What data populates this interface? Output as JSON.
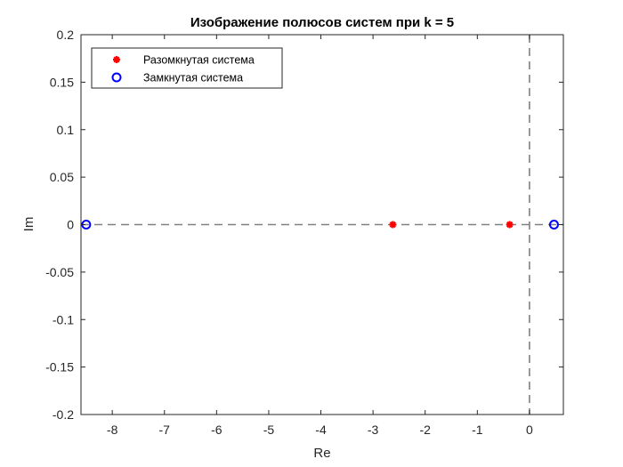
{
  "chart_data": {
    "type": "scatter",
    "title": "Изображение полюсов систем при k = 5",
    "xlabel": "Re",
    "ylabel": "Im",
    "xlim": [
      -8.6,
      0.65
    ],
    "ylim": [
      -0.2,
      0.2
    ],
    "xticks": [
      -8,
      -7,
      -6,
      -5,
      -4,
      -3,
      -2,
      -1,
      0
    ],
    "xtick_labels": [
      "-8",
      "-7",
      "-6",
      "-5",
      "-4",
      "-3",
      "-2",
      "-1",
      "0"
    ],
    "yticks": [
      -0.2,
      -0.15,
      -0.1,
      -0.05,
      0,
      0.05,
      0.1,
      0.15,
      0.2
    ],
    "ytick_labels": [
      "-0.2",
      "-0.15",
      "-0.1",
      "-0.05",
      "0",
      "0.05",
      "0.1",
      "0.15",
      "0.2"
    ],
    "grid": false,
    "legend_position": "top-left",
    "reference_lines": [
      {
        "orientation": "horizontal",
        "value": 0,
        "style": "dashed",
        "color": "#808080"
      },
      {
        "orientation": "vertical",
        "value": 0,
        "style": "dashed",
        "color": "#808080"
      }
    ],
    "series": [
      {
        "name": "Разомкнутая система",
        "marker": "asterisk",
        "color": "#ff0000",
        "points": [
          {
            "x": -2.62,
            "y": 0
          },
          {
            "x": -0.38,
            "y": 0
          }
        ]
      },
      {
        "name": "Замкнутая система",
        "marker": "circle",
        "color": "#0000ff",
        "points": [
          {
            "x": -8.5,
            "y": 0
          },
          {
            "x": 0.47,
            "y": 0
          }
        ]
      }
    ]
  }
}
